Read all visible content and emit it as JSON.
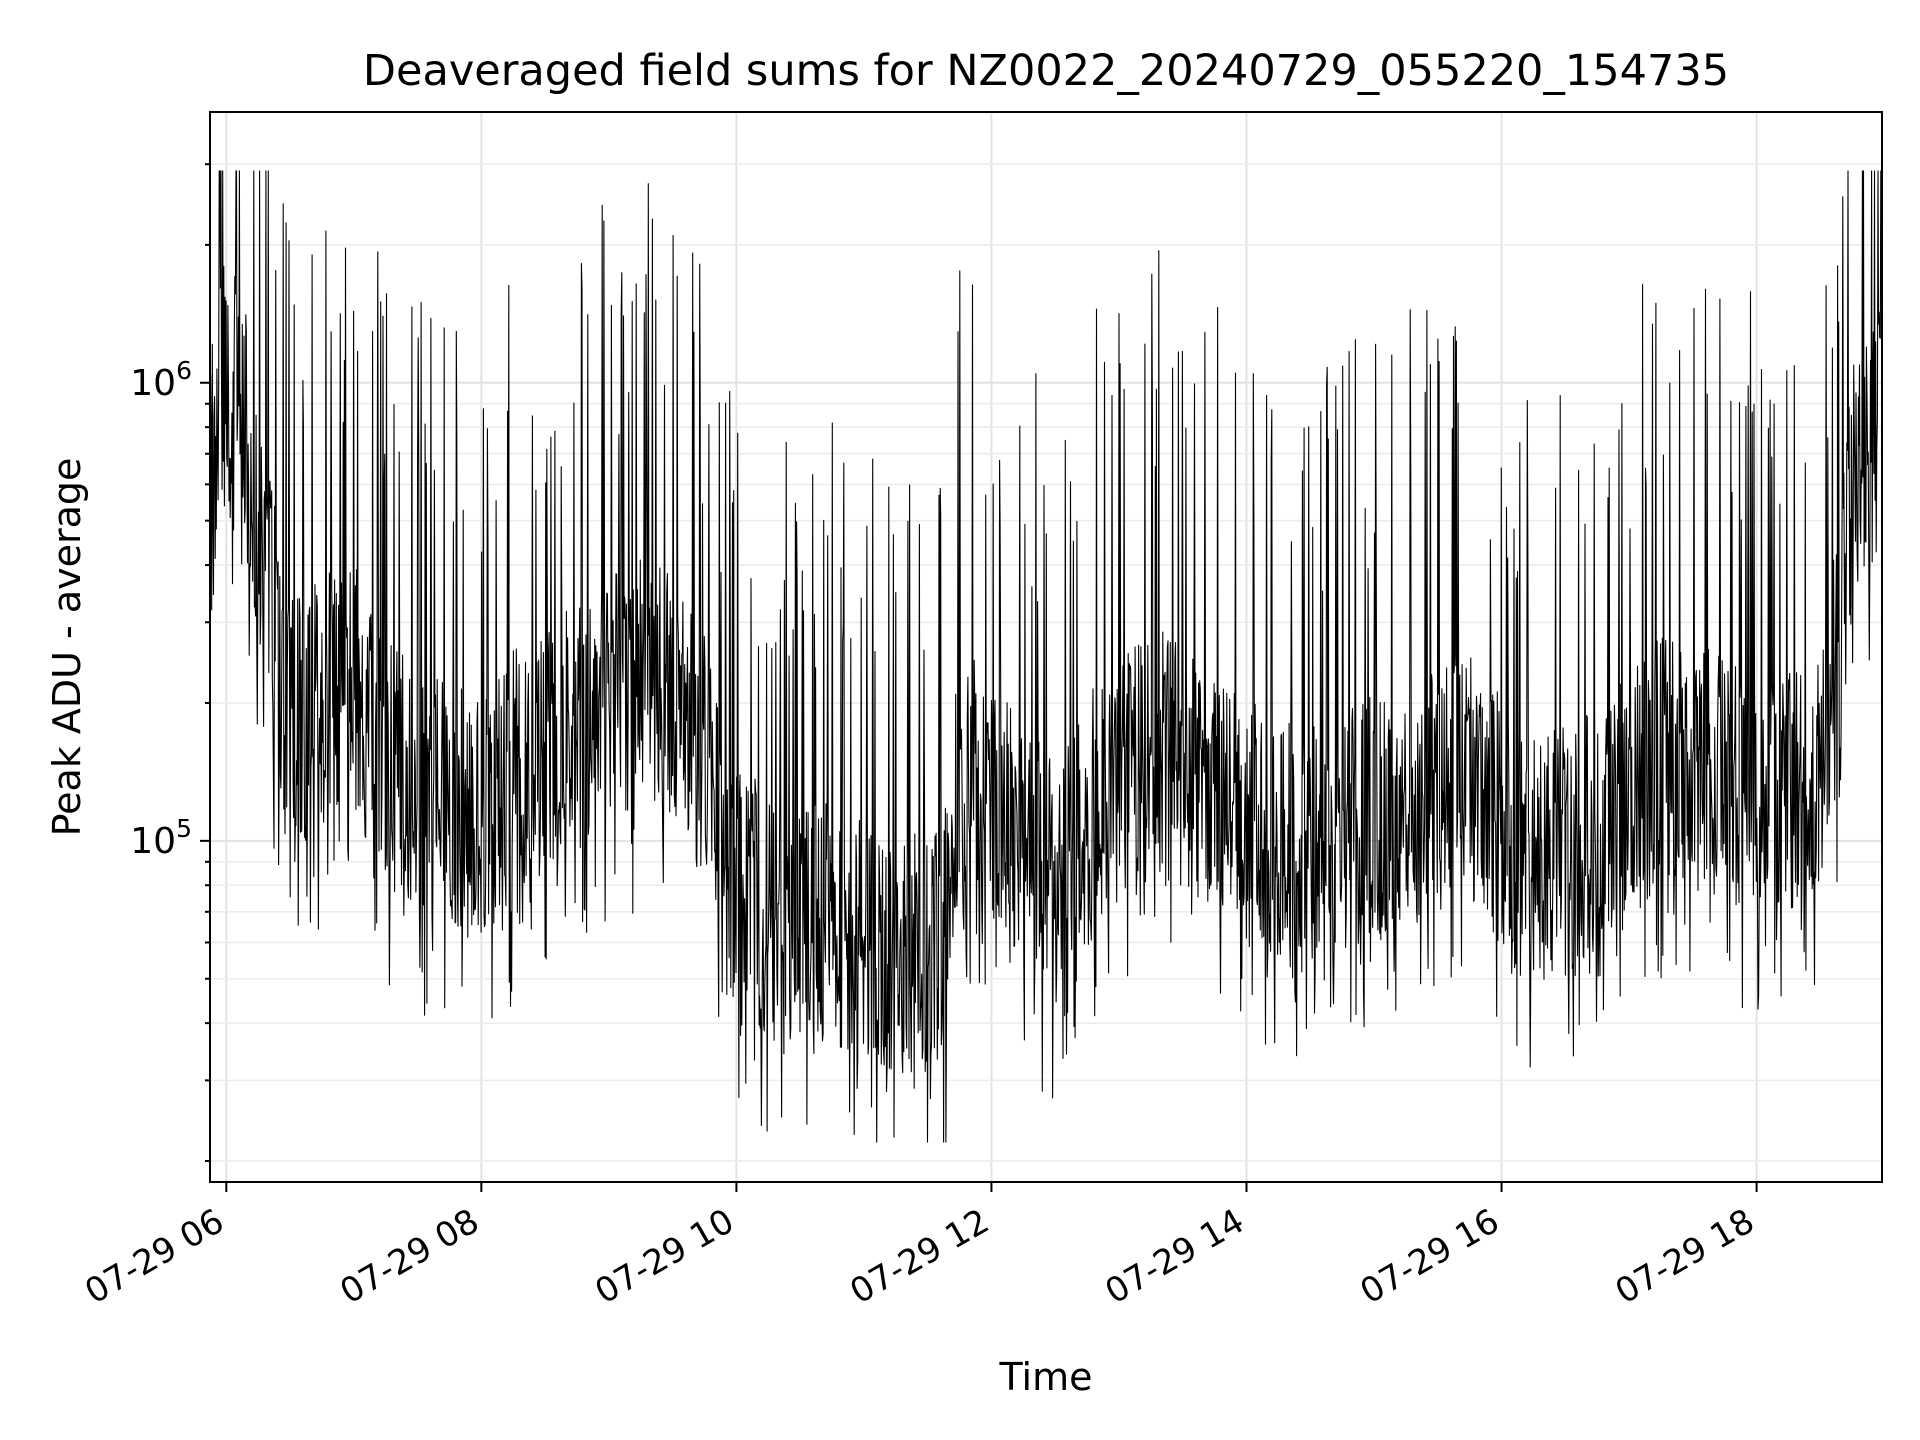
{
  "chart_data": {
    "type": "line",
    "title": "Deaveraged field sums for NZ0022_20240729_055220_154735",
    "xlabel": "Time",
    "ylabel": "Peak ADU - average",
    "x_axis": {
      "type": "time",
      "range": [
        "2024-07-29T05:52:20",
        "2024-07-29T18:59:00"
      ],
      "tick_values": [
        "2024-07-29T06:00",
        "2024-07-29T08:00",
        "2024-07-29T10:00",
        "2024-07-29T12:00",
        "2024-07-29T14:00",
        "2024-07-29T16:00",
        "2024-07-29T18:00"
      ],
      "tick_labels": [
        "07-29 06",
        "07-29 08",
        "07-29 10",
        "07-29 12",
        "07-29 14",
        "07-29 16",
        "07-29 18"
      ],
      "tick_label_rotation_deg": 30
    },
    "y_axis": {
      "scale": "log",
      "ylim": [
        18000,
        3900000
      ],
      "major_ticks": [
        {
          "value": 100000,
          "base": "10",
          "exponent": "5"
        },
        {
          "value": 1000000,
          "base": "10",
          "exponent": "6"
        }
      ]
    },
    "grid": "on (major and minor)",
    "legend": "none",
    "line_color": "#000000",
    "series": [
      {
        "x": [
          "2024-07-29T05:52",
          "2024-07-29T06:00",
          "2024-07-29T06:10",
          "2024-07-29T06:20",
          "2024-07-29T06:30",
          "2024-07-29T06:45",
          "2024-07-29T07:00",
          "2024-07-29T07:15",
          "2024-07-29T07:30",
          "2024-07-29T07:45",
          "2024-07-29T08:00",
          "2024-07-29T08:15",
          "2024-07-29T08:30",
          "2024-07-29T08:45",
          "2024-07-29T09:00",
          "2024-07-29T09:15",
          "2024-07-29T09:30",
          "2024-07-29T09:45",
          "2024-07-29T10:00",
          "2024-07-29T10:15",
          "2024-07-29T10:30",
          "2024-07-29T10:45",
          "2024-07-29T11:00",
          "2024-07-29T11:15",
          "2024-07-29T11:30",
          "2024-07-29T11:37",
          "2024-07-29T11:45",
          "2024-07-29T12:00",
          "2024-07-29T12:15",
          "2024-07-29T12:30",
          "2024-07-29T12:45",
          "2024-07-29T13:00",
          "2024-07-29T13:15",
          "2024-07-29T13:30",
          "2024-07-29T13:45",
          "2024-07-29T14:00",
          "2024-07-29T14:15",
          "2024-07-29T14:30",
          "2024-07-29T14:45",
          "2024-07-29T15:00",
          "2024-07-29T15:15",
          "2024-07-29T15:30",
          "2024-07-29T15:45",
          "2024-07-29T16:00",
          "2024-07-29T16:15",
          "2024-07-29T16:30",
          "2024-07-29T16:45",
          "2024-07-29T17:00",
          "2024-07-29T17:15",
          "2024-07-29T17:30",
          "2024-07-29T17:45",
          "2024-07-29T18:00",
          "2024-07-29T18:15",
          "2024-07-29T18:30",
          "2024-07-29T18:38",
          "2024-07-29T18:45",
          "2024-07-29T18:55",
          "2024-07-29T18:59"
        ],
        "y": [
          600000,
          1100000,
          750000,
          350000,
          180000,
          200000,
          220000,
          150000,
          130000,
          120000,
          110000,
          140000,
          160000,
          180000,
          200000,
          220000,
          210000,
          150000,
          80000,
          70000,
          68000,
          65000,
          60000,
          58000,
          56000,
          55000,
          150000,
          130000,
          100000,
          80000,
          110000,
          140000,
          160000,
          150000,
          120000,
          110000,
          100000,
          95000,
          105000,
          110000,
          120000,
          130000,
          140000,
          110000,
          90000,
          95000,
          105000,
          130000,
          150000,
          145000,
          140000,
          130000,
          130000,
          135000,
          250000,
          600000,
          700000,
          2500000
        ],
        "fluctuation_range": [
          22000,
          2900000
        ]
      }
    ]
  }
}
